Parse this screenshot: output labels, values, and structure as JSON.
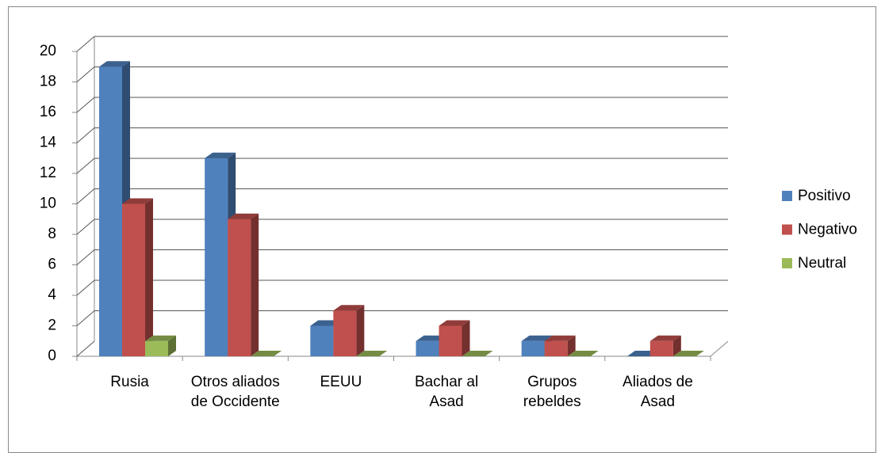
{
  "chart_data": {
    "type": "bar3d",
    "categories": [
      "Rusia",
      "Otros aliados de Occidente",
      "EEUU",
      "Bachar al Asad",
      "Grupos rebeldes",
      "Aliados de Asad"
    ],
    "series": [
      {
        "name": "Positivo",
        "color": "#4f81bd",
        "values": [
          19,
          13,
          2,
          1,
          1,
          0
        ]
      },
      {
        "name": "Negativo",
        "color": "#c0504d",
        "values": [
          10,
          9,
          3,
          2,
          1,
          1
        ]
      },
      {
        "name": "Neutral",
        "color": "#9bbb59",
        "values": [
          1,
          0,
          0,
          0,
          0,
          0
        ]
      }
    ],
    "ylim": [
      0,
      20
    ],
    "yticks": [
      0,
      2,
      4,
      6,
      8,
      10,
      12,
      14,
      16,
      18,
      20
    ],
    "grid": true,
    "legend": "right"
  }
}
